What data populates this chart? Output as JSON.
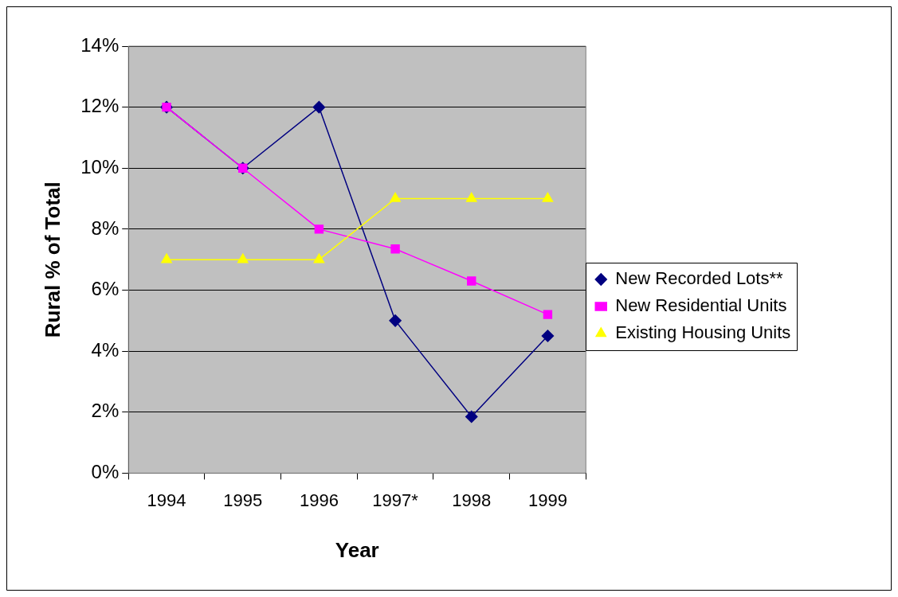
{
  "chart_data": {
    "type": "line",
    "xlabel": "Year",
    "ylabel": "Rural % of Total",
    "categories": [
      "1994",
      "1995",
      "1996",
      "1997*",
      "1998",
      "1999"
    ],
    "series": [
      {
        "name": "New Recorded Lots**",
        "color": "#000080",
        "marker": "diamond",
        "values": [
          12,
          10,
          12,
          5,
          1.85,
          4.5
        ]
      },
      {
        "name": "New Residential Units",
        "color": "#ff00ff",
        "marker": "square",
        "values": [
          12,
          10,
          8,
          7.35,
          6.3,
          5.2
        ]
      },
      {
        "name": "Existing Housing Units",
        "color": "#ffff00",
        "marker": "triangle",
        "values": [
          7,
          7,
          7,
          9,
          9,
          9
        ]
      }
    ],
    "ylim": [
      0,
      14
    ],
    "yticks": [
      {
        "value": 0,
        "label": "0%"
      },
      {
        "value": 2,
        "label": "2%"
      },
      {
        "value": 4,
        "label": "4%"
      },
      {
        "value": 6,
        "label": "6%"
      },
      {
        "value": 8,
        "label": "8%"
      },
      {
        "value": 10,
        "label": "10%"
      },
      {
        "value": 12,
        "label": "12%"
      },
      {
        "value": 14,
        "label": "14%"
      }
    ],
    "grid": "y",
    "legend": "right",
    "line_style": "solid"
  }
}
